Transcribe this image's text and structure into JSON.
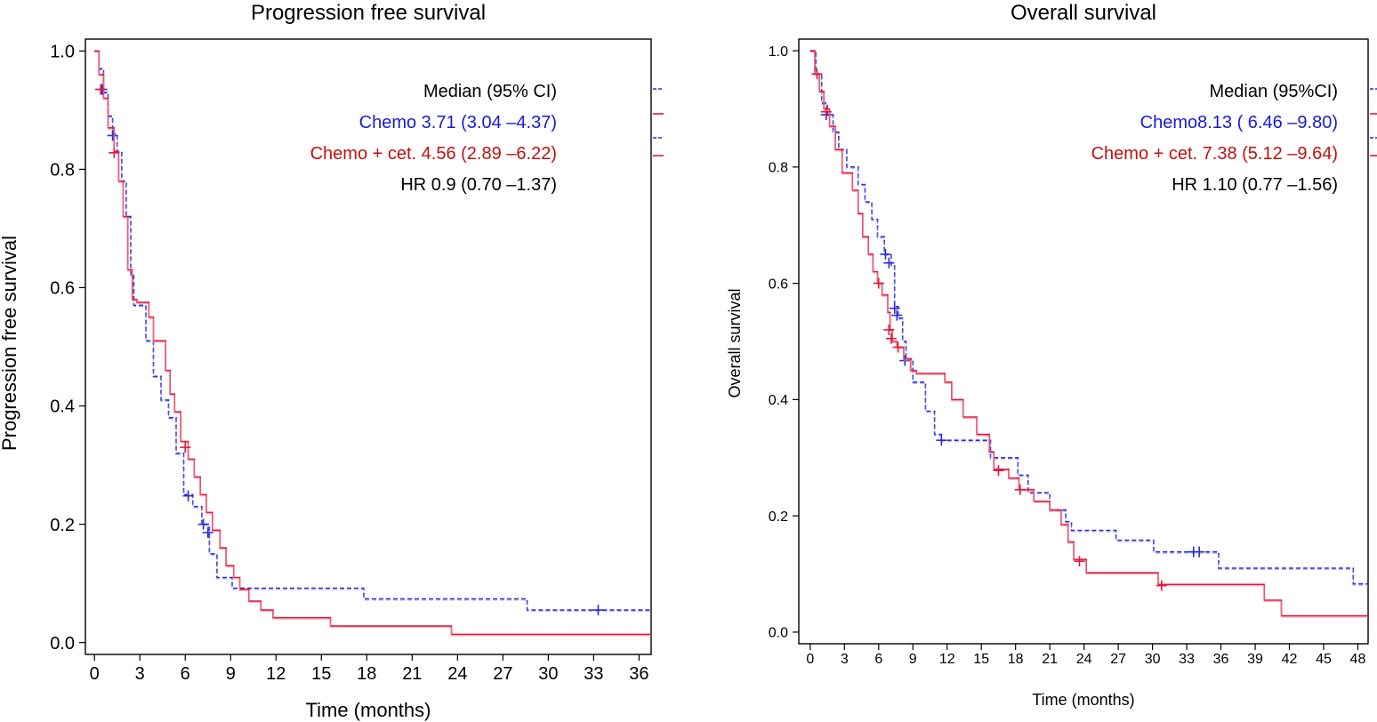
{
  "chart_data": [
    {
      "type": "line",
      "kind": "kaplan-meier",
      "title": "Progression free survival",
      "xlabel": "Time (months)",
      "ylabel": "Progression free survival",
      "xlim": [
        -0.6,
        36.8
      ],
      "ylim": [
        -0.02,
        1.02
      ],
      "xticks": [
        "0",
        "3",
        "6",
        "9",
        "12",
        "15",
        "18",
        "21",
        "24",
        "27",
        "30",
        "33",
        "36"
      ],
      "yticks": [
        "0.0",
        "0.2",
        "0.4",
        "0.6",
        "0.8",
        "1.0"
      ],
      "legend": {
        "header": "Median (95% CI)",
        "entries": [
          "Chemo 3.71 (3.04 –4.37)",
          "Chemo + cet. 4.56 (2.89 –6.22)"
        ],
        "hr": "HR 0.9 (0.70 –1.37)",
        "placement": "top-right"
      },
      "series": [
        {
          "name": "Chemo",
          "color": "#2b2bd9",
          "style": "dashed",
          "steps": [
            [
              0,
              1.0
            ],
            [
              0.3,
              0.97
            ],
            [
              0.6,
              0.93
            ],
            [
              0.9,
              0.89
            ],
            [
              1.2,
              0.86
            ],
            [
              1.5,
              0.83
            ],
            [
              1.8,
              0.78
            ],
            [
              2.1,
              0.72
            ],
            [
              2.4,
              0.62
            ],
            [
              2.6,
              0.57
            ],
            [
              3.4,
              0.51
            ],
            [
              3.9,
              0.45
            ],
            [
              4.4,
              0.41
            ],
            [
              4.9,
              0.38
            ],
            [
              5.4,
              0.32
            ],
            [
              5.9,
              0.25
            ],
            [
              6.5,
              0.23
            ],
            [
              7.1,
              0.2
            ],
            [
              7.6,
              0.15
            ],
            [
              8.1,
              0.11
            ],
            [
              9.1,
              0.092
            ],
            [
              17.8,
              0.074
            ],
            [
              28.6,
              0.055
            ],
            [
              36.8,
              0.055
            ]
          ],
          "censors": [
            [
              0.5,
              0.935
            ],
            [
              1.2,
              0.857
            ],
            [
              6.2,
              0.248
            ],
            [
              7.2,
              0.2
            ],
            [
              7.5,
              0.186
            ],
            [
              33.3,
              0.055
            ]
          ]
        },
        {
          "name": "Chemo + cet.",
          "color": "#e0193c",
          "style": "solid",
          "steps": [
            [
              0,
              1.0
            ],
            [
              0.3,
              0.96
            ],
            [
              0.6,
              0.92
            ],
            [
              0.9,
              0.87
            ],
            [
              1.3,
              0.83
            ],
            [
              1.6,
              0.78
            ],
            [
              1.9,
              0.72
            ],
            [
              2.2,
              0.63
            ],
            [
              2.5,
              0.58
            ],
            [
              2.8,
              0.575
            ],
            [
              3.6,
              0.55
            ],
            [
              3.9,
              0.51
            ],
            [
              4.7,
              0.46
            ],
            [
              5.0,
              0.42
            ],
            [
              5.3,
              0.39
            ],
            [
              5.7,
              0.34
            ],
            [
              6.2,
              0.31
            ],
            [
              6.6,
              0.28
            ],
            [
              7.0,
              0.25
            ],
            [
              7.4,
              0.22
            ],
            [
              7.8,
              0.19
            ],
            [
              8.3,
              0.16
            ],
            [
              8.7,
              0.13
            ],
            [
              9.2,
              0.11
            ],
            [
              9.6,
              0.09
            ],
            [
              10.2,
              0.07
            ],
            [
              11.0,
              0.055
            ],
            [
              11.8,
              0.042
            ],
            [
              15.6,
              0.028
            ],
            [
              23.6,
              0.014
            ],
            [
              36.8,
              0.014
            ]
          ],
          "censors": [
            [
              0.4,
              0.935
            ],
            [
              1.3,
              0.828
            ],
            [
              6.0,
              0.33
            ]
          ]
        }
      ]
    },
    {
      "type": "line",
      "kind": "kaplan-meier",
      "title": "Overall survival",
      "xlabel": "Time (months)",
      "ylabel": "Overall survival",
      "xlim": [
        -1.0,
        48.9
      ],
      "ylim": [
        -0.02,
        1.02
      ],
      "xticks": [
        "0",
        "3",
        "6",
        "9",
        "12",
        "15",
        "18",
        "21",
        "24",
        "27",
        "30",
        "33",
        "36",
        "39",
        "42",
        "45",
        "48"
      ],
      "yticks": [
        "0.0",
        "0.2",
        "0.4",
        "0.6",
        "0.8",
        "1.0"
      ],
      "legend": {
        "header": "Median (95%CI)",
        "entries": [
          "Chemo8.13 ( 6.46 –9.80)",
          "Chemo + cet. 7.38 (5.12 –9.64)"
        ],
        "hr": "HR 1.10 (0.77 –1.56)",
        "placement": "top-right"
      },
      "series": [
        {
          "name": "Chemo",
          "color": "#2b2bd9",
          "style": "dashed",
          "steps": [
            [
              0,
              1.0
            ],
            [
              0.5,
              0.96
            ],
            [
              1.0,
              0.91
            ],
            [
              1.5,
              0.89
            ],
            [
              2.0,
              0.86
            ],
            [
              2.5,
              0.83
            ],
            [
              3.2,
              0.8
            ],
            [
              4.2,
              0.77
            ],
            [
              4.8,
              0.74
            ],
            [
              5.4,
              0.71
            ],
            [
              5.9,
              0.68
            ],
            [
              6.5,
              0.65
            ],
            [
              7.1,
              0.63
            ],
            [
              7.4,
              0.56
            ],
            [
              7.7,
              0.54
            ],
            [
              8.1,
              0.5
            ],
            [
              8.4,
              0.47
            ],
            [
              9.0,
              0.43
            ],
            [
              10.1,
              0.38
            ],
            [
              10.9,
              0.34
            ],
            [
              11.5,
              0.33
            ],
            [
              15.8,
              0.3
            ],
            [
              18.2,
              0.27
            ],
            [
              19.1,
              0.24
            ],
            [
              21.0,
              0.21
            ],
            [
              22.4,
              0.19
            ],
            [
              22.9,
              0.175
            ],
            [
              26.8,
              0.158
            ],
            [
              30.1,
              0.138
            ],
            [
              35.8,
              0.11
            ],
            [
              47.6,
              0.083
            ],
            [
              48.9,
              0.083
            ]
          ],
          "censors": [
            [
              1.4,
              0.89
            ],
            [
              6.6,
              0.65
            ],
            [
              6.9,
              0.635
            ],
            [
              7.4,
              0.557
            ],
            [
              7.6,
              0.545
            ],
            [
              8.3,
              0.467
            ],
            [
              11.5,
              0.33
            ],
            [
              33.6,
              0.138
            ],
            [
              34.1,
              0.138
            ]
          ]
        },
        {
          "name": "Chemo + cet.",
          "color": "#e0193c",
          "style": "solid",
          "steps": [
            [
              0,
              1.0
            ],
            [
              0.4,
              0.96
            ],
            [
              0.8,
              0.93
            ],
            [
              1.2,
              0.9
            ],
            [
              1.7,
              0.87
            ],
            [
              2.2,
              0.83
            ],
            [
              2.8,
              0.79
            ],
            [
              3.7,
              0.76
            ],
            [
              4.2,
              0.72
            ],
            [
              4.6,
              0.68
            ],
            [
              5.1,
              0.65
            ],
            [
              5.5,
              0.62
            ],
            [
              5.9,
              0.6
            ],
            [
              6.3,
              0.58
            ],
            [
              6.8,
              0.55
            ],
            [
              7.0,
              0.52
            ],
            [
              7.2,
              0.5
            ],
            [
              7.6,
              0.49
            ],
            [
              8.2,
              0.47
            ],
            [
              8.8,
              0.45
            ],
            [
              9.3,
              0.445
            ],
            [
              11.8,
              0.43
            ],
            [
              12.4,
              0.4
            ],
            [
              13.4,
              0.37
            ],
            [
              14.6,
              0.34
            ],
            [
              15.7,
              0.31
            ],
            [
              16.1,
              0.28
            ],
            [
              17.4,
              0.265
            ],
            [
              18.3,
              0.245
            ],
            [
              19.6,
              0.225
            ],
            [
              21.0,
              0.21
            ],
            [
              22.0,
              0.185
            ],
            [
              22.6,
              0.155
            ],
            [
              23.1,
              0.125
            ],
            [
              24.2,
              0.102
            ],
            [
              30.5,
              0.082
            ],
            [
              39.8,
              0.055
            ],
            [
              41.3,
              0.028
            ],
            [
              48.9,
              0.028
            ]
          ],
          "censors": [
            [
              0.6,
              0.96
            ],
            [
              1.4,
              0.895
            ],
            [
              6.0,
              0.6
            ],
            [
              6.9,
              0.52
            ],
            [
              7.1,
              0.505
            ],
            [
              7.7,
              0.49
            ],
            [
              16.5,
              0.278
            ],
            [
              18.4,
              0.245
            ],
            [
              23.6,
              0.122
            ],
            [
              30.8,
              0.08
            ]
          ]
        }
      ]
    }
  ]
}
